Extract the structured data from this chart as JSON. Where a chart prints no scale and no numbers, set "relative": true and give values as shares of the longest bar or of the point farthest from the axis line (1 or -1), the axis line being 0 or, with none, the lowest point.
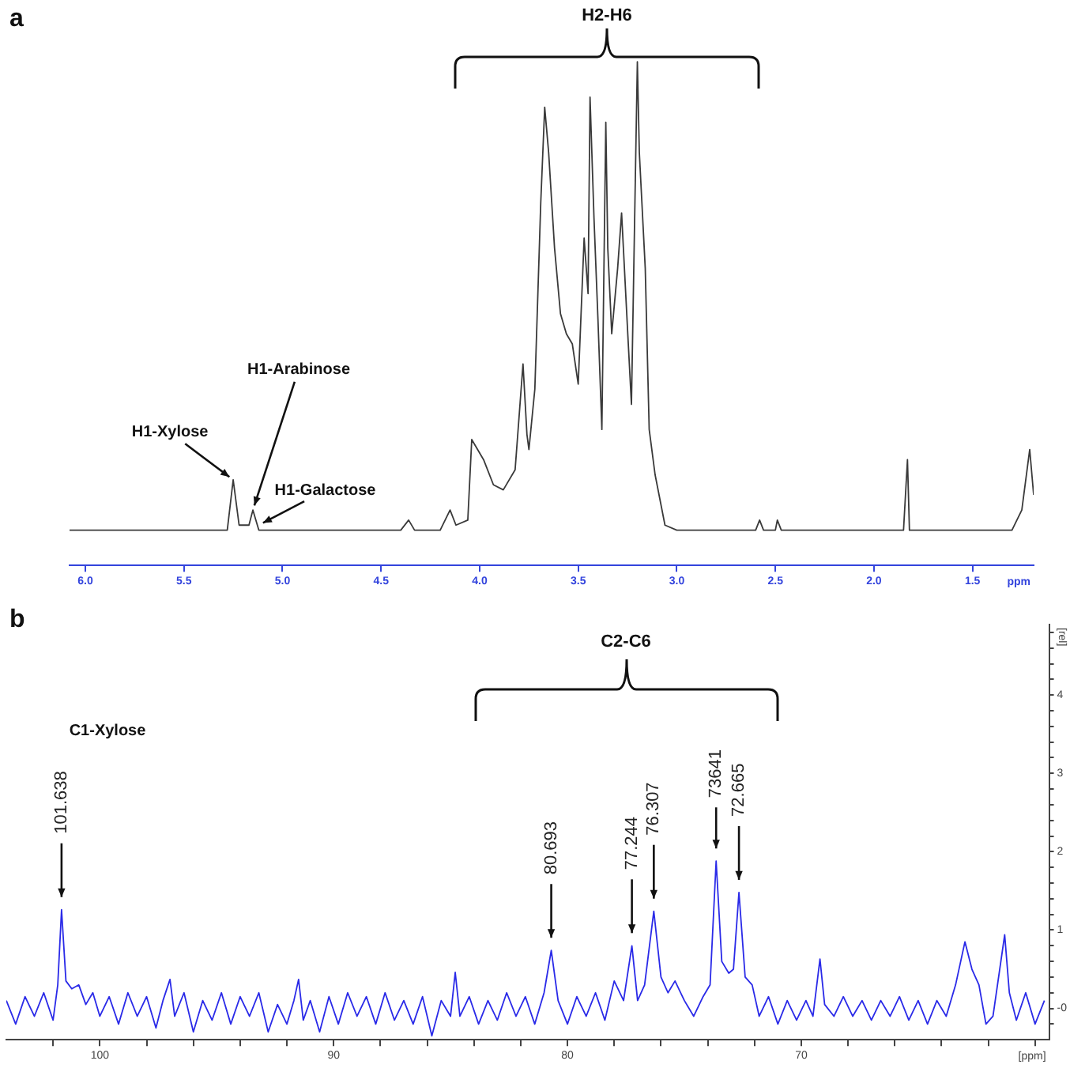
{
  "chart_data": [
    {
      "type": "line",
      "title": "a",
      "xlabel": "ppm",
      "color": "#3a3a3a",
      "relative": true,
      "grid": false,
      "tick_labels": "x",
      "xlim": [
        6.08,
        1.19
      ],
      "xticks": [
        {
          "value": 6,
          "label": "6.0"
        },
        5.5,
        {
          "value": 5,
          "label": "5.0"
        },
        4.5,
        {
          "value": 4,
          "label": "4.0"
        },
        3.5,
        {
          "value": 3,
          "label": "3.0"
        },
        2.5,
        {
          "value": 2,
          "label": "2.0"
        },
        1.5
      ],
      "x": [
        6.08,
        5.5,
        5.28,
        5.25,
        5.22,
        5.17,
        5.15,
        5.12,
        4.4,
        4.36,
        4.33,
        4.2,
        4.15,
        4.12,
        4.06,
        4.04,
        4.01,
        3.98,
        3.93,
        3.88,
        3.82,
        3.78,
        3.76,
        3.75,
        3.72,
        3.69,
        3.67,
        3.65,
        3.62,
        3.59,
        3.56,
        3.53,
        3.5,
        3.47,
        3.45,
        3.44,
        3.42,
        3.4,
        3.38,
        3.36,
        3.35,
        3.33,
        3.3,
        3.28,
        3.25,
        3.23,
        3.2,
        3.19,
        3.16,
        3.14,
        3.11,
        3.08,
        3.06,
        3.0,
        2.6,
        2.58,
        2.56,
        2.5,
        2.49,
        2.47,
        1.85,
        1.83,
        1.82,
        1.3,
        1.25,
        1.21,
        1.19
      ],
      "values": [
        0.07,
        0.07,
        0.07,
        0.17,
        0.08,
        0.08,
        0.11,
        0.07,
        0.07,
        0.09,
        0.07,
        0.07,
        0.11,
        0.08,
        0.09,
        0.25,
        0.23,
        0.21,
        0.16,
        0.15,
        0.19,
        0.4,
        0.26,
        0.23,
        0.35,
        0.72,
        0.91,
        0.82,
        0.63,
        0.5,
        0.46,
        0.44,
        0.36,
        0.65,
        0.54,
        0.93,
        0.69,
        0.49,
        0.27,
        0.88,
        0.63,
        0.46,
        0.59,
        0.7,
        0.47,
        0.32,
        1,
        0.82,
        0.59,
        0.27,
        0.18,
        0.12,
        0.08,
        0.07,
        0.07,
        0.09,
        0.07,
        0.07,
        0.09,
        0.07,
        0.07,
        0.21,
        0.07,
        0.07,
        0.11,
        0.23,
        0.14
      ],
      "annotations": [
        "H2-H6",
        {
          "text": "H1-Xylose",
          "x": 5.25,
          "y": 0.17
        },
        {
          "text": "H1-Arabinose",
          "x": 5.15,
          "y": 0.11
        },
        {
          "text": "H1-Galactose",
          "x": 5.12,
          "y": 0.08
        }
      ]
    },
    {
      "type": "line",
      "title": "b",
      "xlabel": "[ppm]",
      "ylabel": "[rel]",
      "color": "#2a2ae8",
      "grid": false,
      "xlim": [
        104,
        59.4
      ],
      "xticks": [
        {
          "value": 102,
          "label": null
        },
        100,
        {
          "value": 98,
          "label": null
        },
        {
          "value": 96,
          "label": null
        },
        {
          "value": 94,
          "label": null
        },
        {
          "value": 92,
          "label": null
        },
        90,
        {
          "value": 88,
          "label": null
        },
        {
          "value": 86,
          "label": null
        },
        {
          "value": 84,
          "label": null
        },
        {
          "value": 82,
          "label": null
        },
        80,
        {
          "value": 78,
          "label": null
        },
        {
          "value": 76,
          "label": null
        },
        {
          "value": 74,
          "label": null
        },
        {
          "value": 72,
          "label": null
        },
        70,
        {
          "value": 68,
          "label": null
        },
        {
          "value": 66,
          "label": null
        },
        {
          "value": 64,
          "label": null
        },
        {
          "value": 62,
          "label": null
        },
        {
          "value": 60,
          "label": null
        }
      ],
      "ylim": [
        -0.4,
        4.9
      ],
      "yticks": [
        {
          "value": -0.2,
          "label": null
        },
        {
          "value": 0,
          "label": "-0"
        },
        {
          "value": 0.2,
          "label": null
        },
        {
          "value": 0.4,
          "label": null
        },
        {
          "value": 0.6,
          "label": null
        },
        {
          "value": 0.8,
          "label": null
        },
        1,
        {
          "value": 1.2,
          "label": null
        },
        {
          "value": 1.4,
          "label": null
        },
        {
          "value": 1.6,
          "label": null
        },
        {
          "value": 1.8,
          "label": null
        },
        2,
        {
          "value": 2.2,
          "label": null
        },
        {
          "value": 2.4,
          "label": null
        },
        {
          "value": 2.6,
          "label": null
        },
        {
          "value": 2.8,
          "label": null
        },
        3,
        {
          "value": 3.2,
          "label": null
        },
        {
          "value": 3.4,
          "label": null
        },
        {
          "value": 3.6,
          "label": null
        },
        {
          "value": 3.8,
          "label": null
        },
        4,
        {
          "value": 4.2,
          "label": null
        },
        {
          "value": 4.4,
          "label": null
        },
        {
          "value": 4.6,
          "label": null
        },
        {
          "value": 4.8,
          "label": null
        }
      ],
      "x": [
        104,
        103.6,
        103.2,
        102.8,
        102.4,
        102.0,
        101.8,
        101.638,
        101.45,
        101.2,
        100.9,
        100.6,
        100.3,
        100.0,
        99.6,
        99.2,
        98.8,
        98.4,
        98.0,
        97.6,
        97.3,
        97.0,
        96.8,
        96.4,
        96.0,
        95.6,
        95.2,
        94.8,
        94.4,
        94.0,
        93.6,
        93.2,
        92.8,
        92.4,
        92.0,
        91.7,
        91.5,
        91.3,
        91.0,
        90.6,
        90.2,
        89.8,
        89.4,
        89.0,
        88.6,
        88.2,
        87.8,
        87.4,
        87.0,
        86.6,
        86.2,
        85.8,
        85.4,
        85.0,
        84.8,
        84.6,
        84.2,
        83.8,
        83.4,
        83.0,
        82.6,
        82.2,
        81.8,
        81.4,
        81.0,
        80.693,
        80.4,
        80.0,
        79.6,
        79.2,
        78.8,
        78.4,
        78.0,
        77.6,
        77.244,
        77.0,
        76.7,
        76.307,
        76.0,
        75.7,
        75.4,
        75.0,
        74.6,
        74.2,
        73.9,
        73.641,
        73.4,
        73.1,
        72.9,
        72.665,
        72.4,
        72.1,
        71.8,
        71.4,
        71.0,
        70.6,
        70.2,
        69.8,
        69.5,
        69.2,
        69.0,
        68.6,
        68.2,
        67.8,
        67.4,
        67.0,
        66.6,
        66.2,
        65.8,
        65.4,
        65.0,
        64.6,
        64.2,
        63.8,
        63.4,
        63.0,
        62.7,
        62.4,
        62.1,
        61.8,
        61.3,
        61.1,
        60.8,
        60.4,
        60.0,
        59.6
      ],
      "values": [
        0.1,
        -0.2,
        0.15,
        -0.1,
        0.2,
        -0.15,
        0.3,
        1.26,
        0.35,
        0.25,
        0.3,
        0.05,
        0.2,
        -0.1,
        0.15,
        -0.2,
        0.2,
        -0.1,
        0.15,
        -0.25,
        0.1,
        0.37,
        -0.1,
        0.2,
        -0.3,
        0.1,
        -0.15,
        0.2,
        -0.2,
        0.15,
        -0.1,
        0.2,
        -0.3,
        0.05,
        -0.2,
        0.1,
        0.37,
        -0.15,
        0.1,
        -0.3,
        0.15,
        -0.2,
        0.2,
        -0.1,
        0.15,
        -0.2,
        0.2,
        -0.15,
        0.1,
        -0.2,
        0.15,
        -0.35,
        0.1,
        -0.1,
        0.46,
        -0.1,
        0.15,
        -0.2,
        0.1,
        -0.15,
        0.2,
        -0.1,
        0.15,
        -0.2,
        0.2,
        0.74,
        0.1,
        -0.2,
        0.15,
        -0.1,
        0.2,
        -0.15,
        0.35,
        0.1,
        0.8,
        0.1,
        0.3,
        1.24,
        0.4,
        0.2,
        0.35,
        0.1,
        -0.1,
        0.15,
        0.3,
        1.88,
        0.6,
        0.45,
        0.5,
        1.48,
        0.4,
        0.3,
        -0.1,
        0.15,
        -0.2,
        0.1,
        -0.15,
        0.1,
        -0.1,
        0.63,
        0.05,
        -0.1,
        0.15,
        -0.1,
        0.1,
        -0.15,
        0.1,
        -0.1,
        0.15,
        -0.15,
        0.1,
        -0.2,
        0.1,
        -0.1,
        0.3,
        0.85,
        0.5,
        0.3,
        -0.2,
        -0.1,
        0.94,
        0.2,
        -0.15,
        0.2,
        -0.2,
        0.1
      ],
      "annotations": [
        "C2-C6",
        "C1-Xylose",
        {
          "text": "101.638",
          "x": 101.638,
          "y": 1.26
        },
        {
          "text": "80.693",
          "x": 80.693,
          "y": 0.74
        },
        {
          "text": "77.244",
          "x": 77.244,
          "y": 0.8
        },
        {
          "text": "76.307",
          "x": 76.307,
          "y": 1.24
        },
        {
          "text": "73641",
          "x": 73.641,
          "y": 1.88
        },
        {
          "text": "72.665",
          "x": 72.665,
          "y": 1.48
        }
      ]
    }
  ]
}
